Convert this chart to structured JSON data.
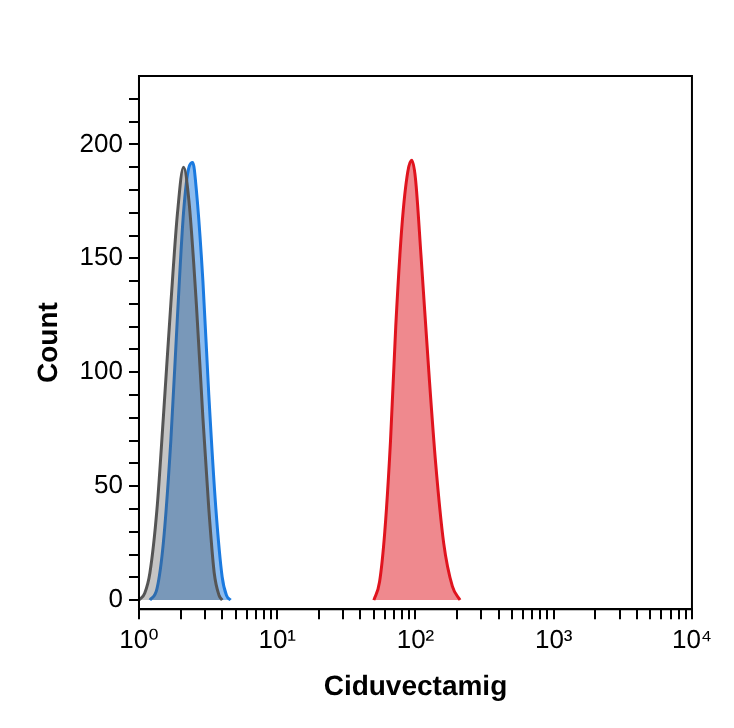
{
  "chart_data": {
    "type": "area",
    "xlabel": "Ciduvectamig",
    "ylabel": "Count",
    "log": "x",
    "grid": false,
    "legend": false,
    "marker": "none",
    "line_style": "solid",
    "xlim": [
      1,
      10000
    ],
    "ylim": [
      -4,
      230
    ],
    "xticks": [
      {
        "value": 1,
        "label": "10⁰"
      },
      {
        "value": 2,
        "label": null
      },
      {
        "value": 3,
        "label": null
      },
      {
        "value": 4,
        "label": null
      },
      {
        "value": 5,
        "label": null
      },
      {
        "value": 6,
        "label": null
      },
      {
        "value": 7,
        "label": null
      },
      {
        "value": 8,
        "label": null
      },
      {
        "value": 9,
        "label": null
      },
      {
        "value": 10,
        "label": "10¹"
      },
      {
        "value": 20,
        "label": null
      },
      {
        "value": 30,
        "label": null
      },
      {
        "value": 40,
        "label": null
      },
      {
        "value": 50,
        "label": null
      },
      {
        "value": 60,
        "label": null
      },
      {
        "value": 70,
        "label": null
      },
      {
        "value": 80,
        "label": null
      },
      {
        "value": 90,
        "label": null
      },
      {
        "value": 100,
        "label": "10²"
      },
      {
        "value": 200,
        "label": null
      },
      {
        "value": 300,
        "label": null
      },
      {
        "value": 400,
        "label": null
      },
      {
        "value": 500,
        "label": null
      },
      {
        "value": 600,
        "label": null
      },
      {
        "value": 700,
        "label": null
      },
      {
        "value": 800,
        "label": null
      },
      {
        "value": 900,
        "label": null
      },
      {
        "value": 1000,
        "label": "10³"
      },
      {
        "value": 2000,
        "label": null
      },
      {
        "value": 3000,
        "label": null
      },
      {
        "value": 4000,
        "label": null
      },
      {
        "value": 5000,
        "label": null
      },
      {
        "value": 6000,
        "label": null
      },
      {
        "value": 7000,
        "label": null
      },
      {
        "value": 8000,
        "label": null
      },
      {
        "value": 9000,
        "label": null
      },
      {
        "value": 10000,
        "label": "10⁴"
      }
    ],
    "yticks": [
      0,
      {
        "value": 10,
        "label": null
      },
      {
        "value": 20,
        "label": null
      },
      {
        "value": 30,
        "label": null
      },
      {
        "value": 40,
        "label": null
      },
      50,
      {
        "value": 60,
        "label": null
      },
      {
        "value": 70,
        "label": null
      },
      {
        "value": 80,
        "label": null
      },
      {
        "value": 90,
        "label": null
      },
      100,
      {
        "value": 110,
        "label": null
      },
      {
        "value": 120,
        "label": null
      },
      {
        "value": 130,
        "label": null
      },
      {
        "value": 140,
        "label": null
      },
      150,
      {
        "value": 160,
        "label": null
      },
      {
        "value": 170,
        "label": null
      },
      {
        "value": 180,
        "label": null
      },
      {
        "value": 190,
        "label": null
      },
      200,
      {
        "value": 210,
        "label": null
      },
      {
        "value": 220,
        "label": null
      }
    ],
    "series": [
      {
        "color": "#555555",
        "x": [
          1.0,
          1.1,
          1.2,
          1.35,
          1.5,
          1.7,
          1.9,
          2.1,
          2.3,
          2.6,
          2.9,
          3.2,
          3.5,
          3.8,
          4.0
        ],
        "values": [
          0,
          3,
          12,
          40,
          80,
          130,
          170,
          190,
          175,
          130,
          80,
          40,
          12,
          2,
          0
        ]
      },
      {
        "color": "#1a7ae0",
        "x": [
          1.2,
          1.35,
          1.5,
          1.7,
          1.9,
          2.1,
          2.3,
          2.45,
          2.6,
          2.9,
          3.2,
          3.6,
          4.0,
          4.3,
          4.6
        ],
        "values": [
          0,
          5,
          25,
          70,
          125,
          170,
          190,
          192,
          180,
          140,
          90,
          40,
          10,
          2,
          0
        ]
      },
      {
        "color": "#e0141e",
        "x": [
          50,
          55,
          60,
          66,
          72,
          80,
          88,
          94,
          100,
          110,
          125,
          140,
          160,
          185,
          210
        ],
        "values": [
          0,
          8,
          30,
          70,
          120,
          165,
          188,
          193,
          185,
          150,
          100,
          60,
          25,
          6,
          0
        ]
      }
    ]
  }
}
